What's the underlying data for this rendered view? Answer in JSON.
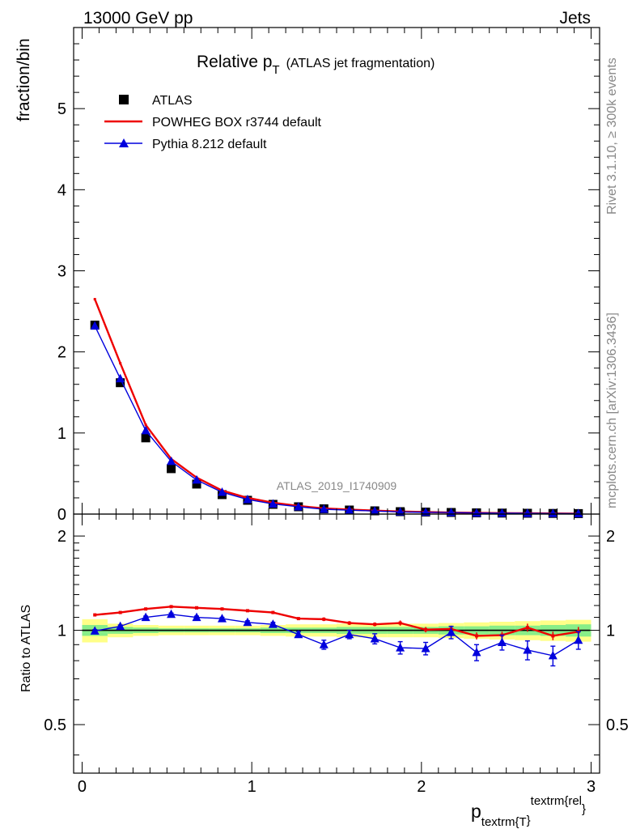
{
  "header": {
    "left": "13000 GeV pp",
    "right": "Jets"
  },
  "side_labels": {
    "rivet": "Rivet 3.1.10, ≥ 300k events",
    "mcplots": "mcplots.cern.ch [arXiv:1306.3436]"
  },
  "chart_data": [
    {
      "type": "line",
      "panel": "main",
      "title_main": "Relative p",
      "title_sub": "T",
      "title_rest": "(ATLAS jet fragmentation)",
      "watermark": "ATLAS_2019_I1740909",
      "ylabel": "fraction/bin",
      "xlim": [
        -0.05,
        3.05
      ],
      "ylim": [
        0,
        6
      ],
      "yticks": [
        0,
        1,
        2,
        3,
        4,
        5
      ],
      "ytick_labels": [
        "0",
        "1",
        "2",
        "3",
        "4",
        "5"
      ],
      "x": [
        0.075,
        0.225,
        0.375,
        0.525,
        0.675,
        0.825,
        0.975,
        1.125,
        1.275,
        1.425,
        1.575,
        1.725,
        1.875,
        2.025,
        2.175,
        2.325,
        2.475,
        2.625,
        2.775,
        2.925
      ],
      "series": [
        {
          "name": "ATLAS",
          "style": "marker",
          "color": "#000000",
          "values": [
            2.33,
            1.62,
            0.94,
            0.56,
            0.37,
            0.24,
            0.17,
            0.12,
            0.09,
            0.065,
            0.05,
            0.04,
            0.03,
            0.025,
            0.02,
            0.015,
            0.012,
            0.01,
            0.008,
            0.006
          ]
        },
        {
          "name": "POWHEG BOX r3744 default",
          "style": "line",
          "color": "#ee0000",
          "values": [
            2.65,
            1.86,
            1.1,
            0.68,
            0.45,
            0.29,
            0.2,
            0.14,
            0.1,
            0.07,
            0.055,
            0.043,
            0.032,
            0.025,
            0.019,
            0.015,
            0.012,
            0.01,
            0.008,
            0.006
          ]
        },
        {
          "name": "Pythia 8.212 default",
          "style": "line-triangle",
          "color": "#0000dd",
          "values": [
            2.32,
            1.67,
            1.03,
            0.65,
            0.42,
            0.27,
            0.18,
            0.125,
            0.09,
            0.06,
            0.048,
            0.038,
            0.027,
            0.022,
            0.019,
            0.013,
            0.011,
            0.009,
            0.007,
            0.006
          ]
        }
      ]
    },
    {
      "type": "line",
      "panel": "ratio",
      "ylabel": "Ratio to ATLAS",
      "xlabel_main": "p",
      "xlabel_sub": "textrm{T",
      "xlabel_sup": "textrm{rel",
      "xlabel_close_sub": "}",
      "xlabel_close_sup": "}",
      "xlim": [
        -0.05,
        3.05
      ],
      "ylim": [
        0.35,
        2.35
      ],
      "yticks": [
        0.5,
        1,
        2
      ],
      "ytick_labels": [
        "0.5",
        "1",
        "2"
      ],
      "xticks": [
        0,
        1,
        2,
        3
      ],
      "xtick_labels": [
        "0",
        "1",
        "2",
        "3"
      ],
      "x": [
        0.075,
        0.225,
        0.375,
        0.525,
        0.675,
        0.825,
        0.975,
        1.125,
        1.275,
        1.425,
        1.575,
        1.725,
        1.875,
        2.025,
        2.175,
        2.325,
        2.475,
        2.625,
        2.775,
        2.925
      ],
      "band_yellow": [
        0.085,
        0.05,
        0.04,
        0.035,
        0.035,
        0.035,
        0.035,
        0.04,
        0.045,
        0.045,
        0.05,
        0.05,
        0.05,
        0.05,
        0.055,
        0.06,
        0.065,
        0.07,
        0.075,
        0.08
      ],
      "band_green": [
        0.04,
        0.025,
        0.02,
        0.015,
        0.015,
        0.015,
        0.015,
        0.02,
        0.02,
        0.02,
        0.025,
        0.025,
        0.025,
        0.025,
        0.03,
        0.03,
        0.035,
        0.035,
        0.04,
        0.045
      ],
      "series": [
        {
          "name": "POWHEG BOX r3744 default",
          "color": "#ee0000",
          "values": [
            1.12,
            1.14,
            1.17,
            1.19,
            1.18,
            1.17,
            1.155,
            1.14,
            1.09,
            1.085,
            1.055,
            1.045,
            1.055,
            1.005,
            1.01,
            0.96,
            0.965,
            1.02,
            0.96,
            0.99
          ],
          "errors": [
            0.005,
            0.005,
            0.005,
            0.005,
            0.005,
            0.005,
            0.005,
            0.008,
            0.01,
            0.015,
            0.015,
            0.015,
            0.02,
            0.02,
            0.025,
            0.025,
            0.025,
            0.03,
            0.03,
            0.035
          ]
        },
        {
          "name": "Pythia 8.212 default",
          "color": "#0000dd",
          "values": [
            0.995,
            1.03,
            1.1,
            1.125,
            1.1,
            1.09,
            1.06,
            1.045,
            0.97,
            0.9,
            0.97,
            0.94,
            0.88,
            0.875,
            0.985,
            0.85,
            0.915,
            0.865,
            0.83,
            0.93
          ],
          "errors": [
            0.01,
            0.01,
            0.01,
            0.01,
            0.01,
            0.01,
            0.012,
            0.015,
            0.02,
            0.03,
            0.03,
            0.035,
            0.04,
            0.04,
            0.045,
            0.05,
            0.05,
            0.06,
            0.06,
            0.06
          ]
        }
      ]
    }
  ]
}
